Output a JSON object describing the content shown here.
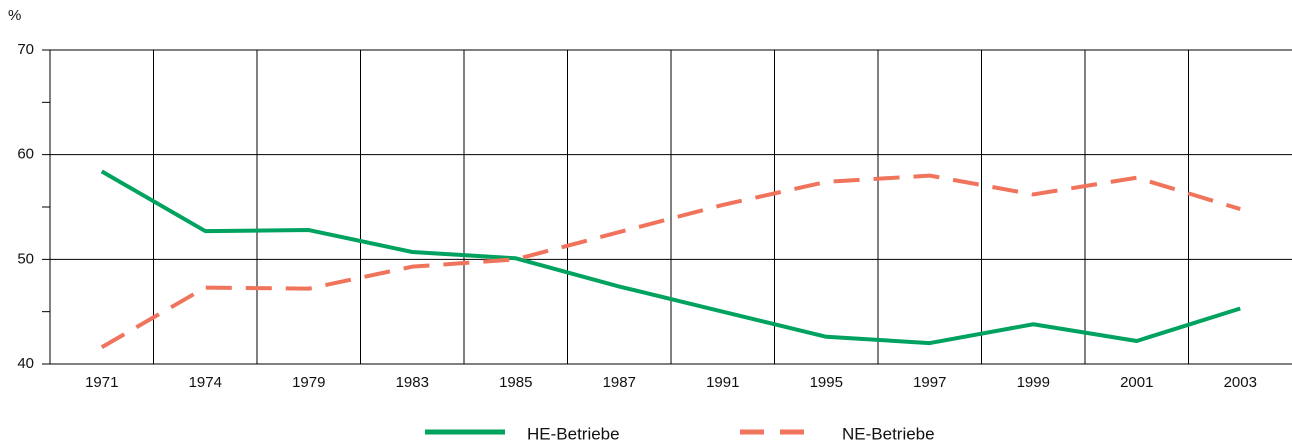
{
  "chart_data": {
    "type": "line",
    "y_label": "%",
    "categories": [
      "1971",
      "1974",
      "1979",
      "1983",
      "1985",
      "1987",
      "1991",
      "1995",
      "1997",
      "1999",
      "2001",
      "2003"
    ],
    "series": [
      {
        "name": "HE-Betriebe",
        "color": "#00a25f",
        "dash": false,
        "values": [
          58.4,
          52.7,
          52.8,
          50.7,
          50.1,
          47.4,
          45.0,
          42.6,
          42.0,
          43.8,
          42.2,
          45.3
        ]
      },
      {
        "name": "NE-Betriebe",
        "color": "#f0735c",
        "dash": true,
        "values": [
          41.6,
          47.3,
          47.2,
          49.3,
          50.0,
          52.6,
          55.2,
          57.4,
          58.0,
          56.2,
          57.8,
          54.8
        ]
      }
    ],
    "ylim": [
      40,
      70
    ],
    "yticks": [
      40,
      50,
      60,
      70
    ],
    "yminor_ticks": [
      45,
      55,
      65
    ],
    "grid": true,
    "legend": "bottom"
  }
}
